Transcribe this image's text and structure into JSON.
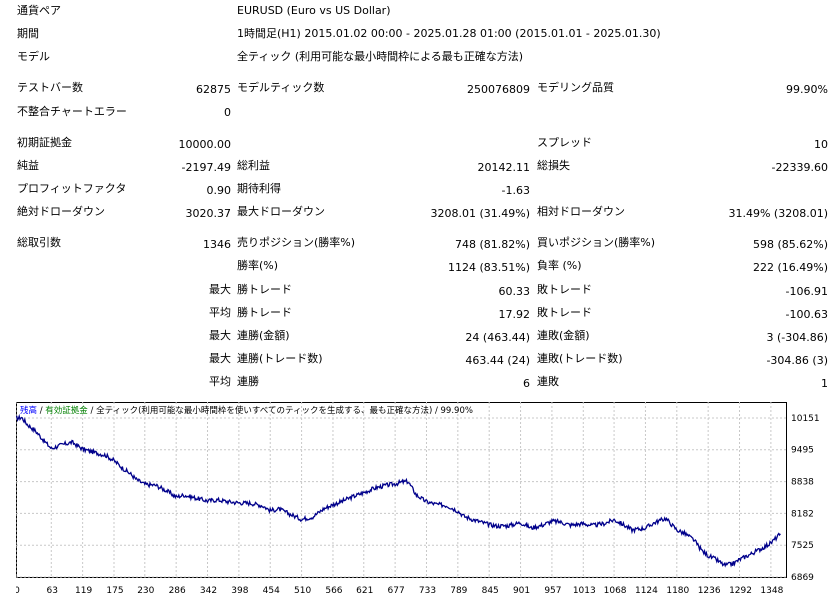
{
  "settings": {
    "symbol_label": "通貨ペア",
    "symbol_value": "EURUSD (Euro vs US Dollar)",
    "period_label": "期間",
    "period_value": "1時間足(H1) 2015.01.02 00:00 - 2025.01.28 01:00 (2015.01.01 - 2025.01.30)",
    "model_label": "モデル",
    "model_value": "全ティック (利用可能な最小時間枠による最も正確な方法)"
  },
  "stats": {
    "bars_label": "テストバー数",
    "bars_value": "62875",
    "ticks_label": "モデルティック数",
    "ticks_value": "250076809",
    "quality_label": "モデリング品質",
    "quality_value": "99.90%",
    "mismatch_label": "不整合チャートエラー",
    "mismatch_value": "0",
    "deposit_label": "初期証拠金",
    "deposit_value": "10000.00",
    "spread_label": "スプレッド",
    "spread_value": "10",
    "net_label": "純益",
    "net_value": "-2197.49",
    "gross_profit_label": "総利益",
    "gross_profit_value": "20142.11",
    "gross_loss_label": "総損失",
    "gross_loss_value": "-22339.60",
    "pf_label": "プロフィットファクタ",
    "pf_value": "0.90",
    "payoff_label": "期待利得",
    "payoff_value": "-1.63",
    "abs_dd_label": "絶対ドローダウン",
    "abs_dd_value": "3020.37",
    "max_dd_label": "最大ドローダウン",
    "max_dd_value": "3208.01 (31.49%)",
    "rel_dd_label": "相対ドローダウン",
    "rel_dd_value": "31.49% (3208.01)"
  },
  "trades": {
    "total_label": "総取引数",
    "total_value": "1346",
    "short_label": "売りポジション(勝率%)",
    "short_value": "748 (81.82%)",
    "long_label": "買いポジション(勝率%)",
    "long_value": "598 (85.62%)",
    "win_label": "勝率(%)",
    "win_value": "1124 (83.51%)",
    "loss_label": "負率 (%)",
    "loss_value": "222 (16.49%)",
    "max_label": "最大",
    "avg_label": "平均",
    "largest_win_label": "勝トレード",
    "largest_win_value": "60.33",
    "largest_loss_label": "敗トレード",
    "largest_loss_value": "-106.91",
    "avg_win_label": "勝トレード",
    "avg_win_value": "17.92",
    "avg_loss_label": "敗トレード",
    "avg_loss_value": "-100.63",
    "max_consec_win_money_label": "連勝(金額)",
    "max_consec_win_money_value": "24 (463.44)",
    "max_consec_loss_money_label": "連敗(金額)",
    "max_consec_loss_money_value": "3 (-304.86)",
    "max_consec_win_trades_label": "連勝(トレード数)",
    "max_consec_win_trades_value": "463.44 (24)",
    "max_consec_loss_trades_label": "連敗(トレード数)",
    "max_consec_loss_trades_value": "-304.86 (3)",
    "avg_consec_win_label": "連勝",
    "avg_consec_win_value": "6",
    "avg_consec_loss_label": "連敗",
    "avg_consec_loss_value": "1"
  },
  "chart_data": {
    "type": "line",
    "legend": [
      {
        "text": "残高",
        "color": "#0000ff"
      },
      {
        "text": " / ",
        "color": "#000000"
      },
      {
        "text": "有効証拠金",
        "color": "#008000"
      },
      {
        "text": " / 全ティック(利用可能な最小時間枠を使いすべてのティックを生成する、最も正確な方法) / 99.90%",
        "color": "#000000"
      }
    ],
    "series": [
      {
        "color": "#00008b",
        "x": [
          0,
          10,
          20,
          35,
          50,
          63,
          80,
          100,
          119,
          140,
          160,
          175,
          190,
          205,
          215,
          230,
          250,
          270,
          286,
          300,
          320,
          342,
          360,
          380,
          398,
          420,
          440,
          454,
          470,
          490,
          510,
          530,
          550,
          566,
          580,
          600,
          621,
          640,
          660,
          677,
          690,
          700,
          715,
          733,
          750,
          770,
          789,
          800,
          820,
          845,
          860,
          880,
          901,
          920,
          940,
          957,
          970,
          990,
          1013,
          1030,
          1050,
          1068,
          1080,
          1100,
          1124,
          1140,
          1160,
          1180,
          1195,
          1210,
          1225,
          1236,
          1250,
          1265,
          1280,
          1292,
          1310,
          1330,
          1348,
          1365
        ],
        "y": [
          10140,
          10160,
          10020,
          9880,
          9680,
          9520,
          9590,
          9650,
          9510,
          9440,
          9380,
          9270,
          9120,
          8990,
          8880,
          8780,
          8760,
          8640,
          8520,
          8560,
          8500,
          8440,
          8460,
          8420,
          8400,
          8390,
          8340,
          8240,
          8270,
          8160,
          8060,
          8110,
          8280,
          8360,
          8420,
          8520,
          8610,
          8700,
          8760,
          8790,
          8830,
          8840,
          8560,
          8420,
          8370,
          8340,
          8230,
          8120,
          8040,
          7950,
          7920,
          7930,
          7990,
          7880,
          7940,
          8020,
          8010,
          7940,
          7970,
          7930,
          7970,
          8050,
          7980,
          7840,
          7880,
          7990,
          8080,
          7840,
          7760,
          7640,
          7410,
          7310,
          7230,
          7110,
          7140,
          7230,
          7330,
          7450,
          7570,
          7760
        ]
      }
    ],
    "yticks": [
      10151,
      9495,
      8838,
      8182,
      7525,
      6869
    ],
    "ylim": [
      6869,
      10480
    ],
    "xticks": [
      0,
      63,
      119,
      175,
      230,
      286,
      342,
      398,
      454,
      510,
      566,
      621,
      677,
      733,
      789,
      845,
      901,
      957,
      1013,
      1068,
      1124,
      1180,
      1236,
      1292,
      1348
    ],
    "xlim": [
      0,
      1375
    ],
    "grid": true
  }
}
